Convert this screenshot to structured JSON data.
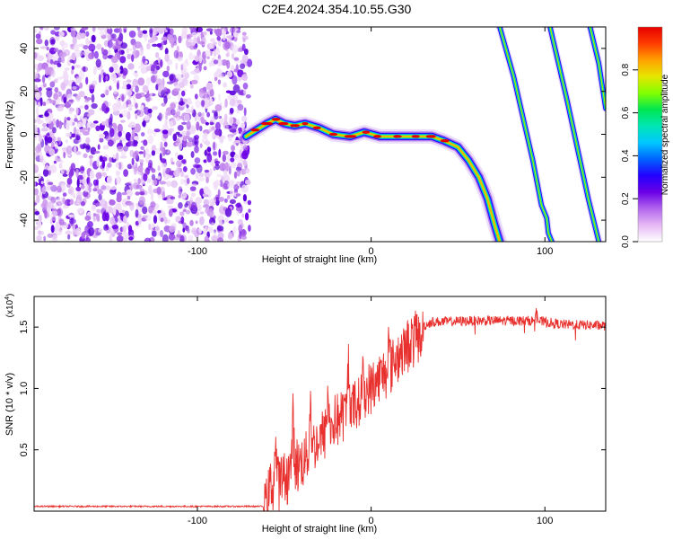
{
  "title": "C2E4.2024.354.10.55.G30",
  "chart_data": [
    {
      "type": "heatmap",
      "xlabel": "Height of straight line (km)",
      "ylabel": "Frequency (Hz)",
      "xlim": [
        -194,
        135
      ],
      "ylim": [
        -50,
        50
      ],
      "x_ticks": [
        -100,
        0,
        100
      ],
      "y_ticks": [
        -40,
        -20,
        0,
        20,
        40
      ],
      "colorbar": {
        "label": "Normalized spectral amplitude",
        "range": [
          0,
          1
        ],
        "ticks": [
          "0.0",
          "0.2",
          "0.4",
          "0.6",
          "0.8"
        ],
        "colors": [
          "#ffffff",
          "#e6b8f4",
          "#b266ee",
          "#6a00e6",
          "#2400ff",
          "#0064ff",
          "#00c8ff",
          "#00e6b4",
          "#00e650",
          "#82ff00",
          "#e6e600",
          "#ffa000",
          "#ff3c00",
          "#e60000"
        ]
      },
      "noise_region_x": [
        -194,
        -70
      ],
      "main_track": [
        {
          "x": -72,
          "y": -1
        },
        {
          "x": -66,
          "y": 2
        },
        {
          "x": -60,
          "y": 5
        },
        {
          "x": -55,
          "y": 7
        },
        {
          "x": -50,
          "y": 5
        },
        {
          "x": -44,
          "y": 4
        },
        {
          "x": -38,
          "y": 5
        },
        {
          "x": -30,
          "y": 3
        },
        {
          "x": -22,
          "y": 0
        },
        {
          "x": -12,
          "y": -1
        },
        {
          "x": -4,
          "y": 1
        },
        {
          "x": 5,
          "y": -1
        },
        {
          "x": 15,
          "y": -1
        },
        {
          "x": 25,
          "y": -1
        },
        {
          "x": 35,
          "y": -1
        },
        {
          "x": 42,
          "y": -3
        },
        {
          "x": 50,
          "y": -6
        },
        {
          "x": 56,
          "y": -12
        },
        {
          "x": 62,
          "y": -20
        },
        {
          "x": 67,
          "y": -30
        },
        {
          "x": 71,
          "y": -42
        },
        {
          "x": 74,
          "y": -50
        }
      ],
      "streaks": [
        {
          "name": "streak-1",
          "points": [
            {
              "x": 74,
              "y": 50
            },
            {
              "x": 82,
              "y": 27
            },
            {
              "x": 93,
              "y": -12
            },
            {
              "x": 98,
              "y": -33
            },
            {
              "x": 101,
              "y": -39
            },
            {
              "x": 102,
              "y": -46
            },
            {
              "x": 104,
              "y": -50
            }
          ]
        },
        {
          "name": "streak-2",
          "points": [
            {
              "x": 103,
              "y": 50
            },
            {
              "x": 113,
              "y": 15
            },
            {
              "x": 125,
              "y": -30
            },
            {
              "x": 131,
              "y": -50
            }
          ]
        },
        {
          "name": "streak-3",
          "points": [
            {
              "x": 126,
              "y": 50
            },
            {
              "x": 131,
              "y": 33
            },
            {
              "x": 135,
              "y": 12
            }
          ]
        }
      ]
    },
    {
      "type": "line",
      "xlabel": "Height of straight line (km)",
      "ylabel": "SNR (10 * v/v)",
      "y_multiplier": "(x10",
      "y_multiplier_exp": "4",
      "y_multiplier_close": ")",
      "xlim": [
        -194,
        135
      ],
      "ylim": [
        0,
        1.75
      ],
      "x_ticks": [
        -100,
        0,
        100
      ],
      "y_ticks": [
        0.5,
        1.0,
        1.5
      ],
      "y_tick_labels": [
        "0.5",
        "1.0",
        "1.5"
      ],
      "series": [
        {
          "color": "#e8312e",
          "envelope": [
            {
              "x": -194,
              "y": 0.04
            },
            {
              "x": -70,
              "y": 0.04
            },
            {
              "x": -62,
              "y": 0.04
            },
            {
              "x": -58,
              "y": 0.25
            },
            {
              "x": -50,
              "y": 0.32
            },
            {
              "x": -40,
              "y": 0.45
            },
            {
              "x": -30,
              "y": 0.62
            },
            {
              "x": -20,
              "y": 0.78
            },
            {
              "x": -10,
              "y": 0.9
            },
            {
              "x": 0,
              "y": 1.05
            },
            {
              "x": 10,
              "y": 1.22
            },
            {
              "x": 20,
              "y": 1.38
            },
            {
              "x": 28,
              "y": 1.5
            },
            {
              "x": 35,
              "y": 1.55
            },
            {
              "x": 60,
              "y": 1.56
            },
            {
              "x": 95,
              "y": 1.56
            },
            {
              "x": 110,
              "y": 1.53
            },
            {
              "x": 135,
              "y": 1.52
            }
          ],
          "peaks": [
            {
              "x": -55,
              "y": 0.6
            },
            {
              "x": -45,
              "y": 0.8
            },
            {
              "x": -35,
              "y": 0.95
            },
            {
              "x": -25,
              "y": 1.0
            },
            {
              "x": -13,
              "y": 1.28
            },
            {
              "x": -5,
              "y": 1.15
            },
            {
              "x": 10,
              "y": 1.42
            },
            {
              "x": 95,
              "y": 1.68
            }
          ]
        }
      ]
    }
  ]
}
